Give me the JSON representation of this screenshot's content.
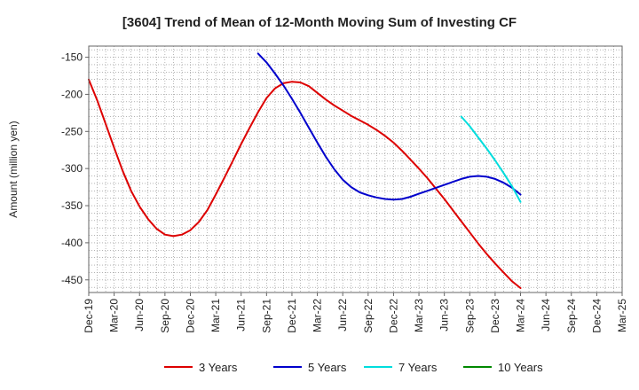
{
  "chart_data": {
    "type": "line",
    "title": "[3604]  Trend of Mean of 12-Month Moving Sum of Investing CF",
    "ylabel": "Amount (million yen)",
    "xlabel": "",
    "ylim": [
      -467,
      -135
    ],
    "yticks": [
      -150,
      -200,
      -250,
      -300,
      -350,
      -400,
      -450
    ],
    "ytick_labels": [
      "-150",
      "-200",
      "-250",
      "-300",
      "-350",
      "-400",
      "-450"
    ],
    "x_range": [
      "2019-12",
      "2025-03"
    ],
    "xticks": [
      "Dec-19",
      "Mar-20",
      "Jun-20",
      "Sep-20",
      "Dec-20",
      "Mar-21",
      "Jun-21",
      "Sep-21",
      "Dec-21",
      "Mar-22",
      "Jun-22",
      "Sep-22",
      "Dec-22",
      "Mar-23",
      "Jun-23",
      "Sep-23",
      "Dec-23",
      "Mar-24",
      "Jun-24",
      "Sep-24",
      "Dec-24",
      "Mar-25"
    ],
    "grid": true,
    "legend_position": "bottom",
    "series": [
      {
        "name": "3 Years",
        "color": "#dd0000",
        "x": [
          "2019-12",
          "2020-01",
          "2020-02",
          "2020-03",
          "2020-04",
          "2020-05",
          "2020-06",
          "2020-07",
          "2020-08",
          "2020-09",
          "2020-10",
          "2020-11",
          "2020-12",
          "2021-01",
          "2021-02",
          "2021-03",
          "2021-04",
          "2021-05",
          "2021-06",
          "2021-07",
          "2021-08",
          "2021-09",
          "2021-10",
          "2021-11",
          "2021-12",
          "2022-01",
          "2022-02",
          "2022-03",
          "2022-04",
          "2022-05",
          "2022-06",
          "2022-07",
          "2022-08",
          "2022-09",
          "2022-10",
          "2022-11",
          "2022-12",
          "2023-01",
          "2023-02",
          "2023-03",
          "2023-04",
          "2023-05",
          "2023-06",
          "2023-07",
          "2023-08",
          "2023-09",
          "2023-10",
          "2023-11",
          "2023-12",
          "2024-01",
          "2024-02",
          "2024-03"
        ],
        "values": [
          -180,
          -208,
          -240,
          -272,
          -303,
          -330,
          -351,
          -368,
          -381,
          -389,
          -391,
          -389,
          -383,
          -372,
          -356,
          -335,
          -313,
          -290,
          -267,
          -245,
          -224,
          -205,
          -192,
          -185,
          -183,
          -184,
          -189,
          -198,
          -207,
          -215,
          -222,
          -229,
          -235,
          -241,
          -248,
          -256,
          -265,
          -276,
          -288,
          -300,
          -313,
          -327,
          -341,
          -356,
          -371,
          -386,
          -401,
          -415,
          -428,
          -440,
          -452,
          -461
        ]
      },
      {
        "name": "5 Years",
        "color": "#0000cc",
        "x": [
          "2021-08",
          "2021-09",
          "2021-10",
          "2021-11",
          "2021-12",
          "2022-01",
          "2022-02",
          "2022-03",
          "2022-04",
          "2022-05",
          "2022-06",
          "2022-07",
          "2022-08",
          "2022-09",
          "2022-10",
          "2022-11",
          "2022-12",
          "2023-01",
          "2023-02",
          "2023-03",
          "2023-04",
          "2023-05",
          "2023-06",
          "2023-07",
          "2023-08",
          "2023-09",
          "2023-10",
          "2023-11",
          "2023-12",
          "2024-01",
          "2024-02",
          "2024-03"
        ],
        "values": [
          -145,
          -157,
          -172,
          -188,
          -206,
          -225,
          -245,
          -265,
          -284,
          -301,
          -315,
          -325,
          -332,
          -336,
          -339,
          -341,
          -342,
          -341,
          -338,
          -334,
          -330,
          -326,
          -322,
          -318,
          -314,
          -311,
          -310,
          -311,
          -314,
          -319,
          -326,
          -335
        ]
      },
      {
        "name": "7 Years",
        "color": "#00dddd",
        "x": [
          "2023-08",
          "2023-09",
          "2023-10",
          "2023-11",
          "2023-12",
          "2024-01",
          "2024-02",
          "2024-03"
        ],
        "values": [
          -230,
          -243,
          -258,
          -273,
          -289,
          -306,
          -324,
          -345
        ]
      },
      {
        "name": "10 Years",
        "color": "#008800",
        "x": [],
        "values": []
      }
    ]
  }
}
